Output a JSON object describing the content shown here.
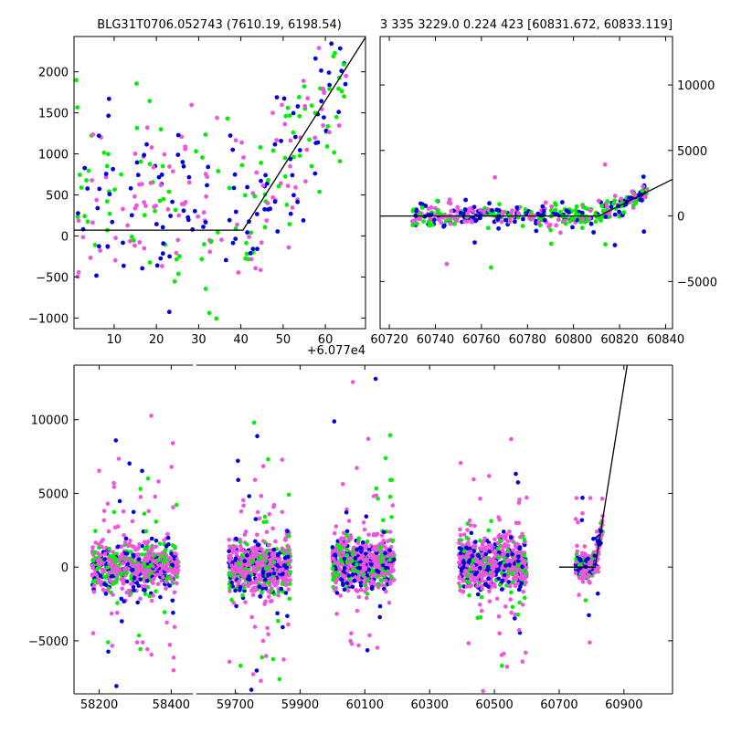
{
  "colors": {
    "green": "#00ee00",
    "blue": "#0000dd",
    "magenta": "#ee55dd",
    "model": "#000000"
  },
  "chart_data": [
    {
      "type": "scatter",
      "title": "BLG31T0706.052743 (7610.19, 6198.54)",
      "xlabel": "",
      "ylabel": "",
      "x_offset_label": "+6.077e4",
      "xlim": [
        0.5,
        69.5
      ],
      "ylim": [
        -1130,
        2430
      ],
      "x_ticks": [
        10,
        20,
        30,
        40,
        50,
        60
      ],
      "y_ticks": [
        -1000,
        -500,
        0,
        500,
        1000,
        1500,
        2000
      ],
      "y_tick_labels": [
        "−1000",
        "−500",
        "0",
        "500",
        "1000",
        "1500",
        "2000"
      ],
      "model_line": {
        "x": [
          0.5,
          40.5,
          69.5
        ],
        "y": [
          70,
          70,
          2420
        ]
      },
      "scatter_summary": [
        {
          "name": "green",
          "x_range": [
            1,
            64
          ],
          "y_center": 400,
          "y_spread": 900
        },
        {
          "name": "blue",
          "x_range": [
            5,
            65
          ],
          "y_center": 500,
          "y_spread": 700
        },
        {
          "name": "magenta",
          "x_range": [
            1,
            65
          ],
          "y_center": 450,
          "y_spread": 800
        }
      ]
    },
    {
      "type": "scatter",
      "title": "3 335 3229.0 0.224 423 [60831.672, 60833.119]",
      "xlabel": "",
      "ylabel": "",
      "xlim": [
        60716,
        60843
      ],
      "ylim": [
        -8600,
        13700
      ],
      "x_ticks": [
        60720,
        60740,
        60760,
        60780,
        60800,
        60820,
        60840
      ],
      "y_ticks": [
        -5000,
        0,
        5000,
        10000
      ],
      "y_tick_labels": [
        "−5000",
        "0",
        "5000",
        "10000"
      ],
      "y_axis_side": "right",
      "model_line": {
        "x": [
          60716,
          60811,
          60843
        ],
        "y": [
          0,
          0,
          2800
        ]
      },
      "scatter_summary": [
        {
          "name": "green",
          "x_range": [
            60730,
            60832
          ],
          "y_center": 100,
          "y_spread": 800
        },
        {
          "name": "blue",
          "x_range": [
            60740,
            60832
          ],
          "y_center": 200,
          "y_spread": 500
        },
        {
          "name": "magenta",
          "x_range": [
            60730,
            60832
          ],
          "y_center": 150,
          "y_spread": 600
        }
      ]
    },
    {
      "type": "scatter",
      "title": "",
      "xlabel": "",
      "ylabel": "",
      "broken_x_axis": true,
      "ylim": [
        -8600,
        13700
      ],
      "y_ticks": [
        -5000,
        0,
        5000,
        10000
      ],
      "y_tick_labels": [
        "−5000",
        "0",
        "5000",
        "10000"
      ],
      "segments": [
        {
          "xlim": [
            58130,
            58460
          ],
          "x_ticks": [
            58200,
            58400
          ]
        },
        {
          "xlim": [
            59580,
            61050
          ],
          "x_ticks": [
            59700,
            59900,
            60100,
            60300,
            60500,
            60700,
            60900
          ]
        }
      ],
      "model_line": {
        "x": [
          60700,
          60811,
          60910
        ],
        "y": [
          0,
          0,
          13700
        ]
      },
      "clusters": [
        {
          "x_range": [
            58180,
            58420
          ],
          "y_center": 0,
          "y_spread": 1500
        },
        {
          "x_range": [
            59680,
            59870
          ],
          "y_center": 0,
          "y_spread": 1600
        },
        {
          "x_range": [
            60000,
            60190
          ],
          "y_center": 300,
          "y_spread": 1500
        },
        {
          "x_range": [
            60390,
            60600
          ],
          "y_center": 200,
          "y_spread": 1500
        },
        {
          "x_range": [
            60750,
            60835
          ],
          "y_center": 0,
          "y_spread": 900
        }
      ]
    }
  ]
}
